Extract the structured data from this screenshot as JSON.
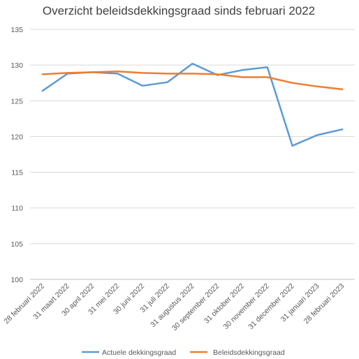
{
  "chart_data": {
    "type": "line",
    "title": "Overzicht beleidsdekkingsgraad sinds februari 2022",
    "xlabel": "",
    "ylabel": "",
    "categories": [
      "28 februari 2022",
      "31 maart 2022",
      "30 april 2022",
      "31 mei 2022",
      "30 juni 2022",
      "31 juli 2022",
      "31 augustus 2022",
      "30 september 2022",
      "31 oktober 2022",
      "30 november 2022",
      "31 december 2022",
      "31 januari 2023",
      "28 februari 2023"
    ],
    "ylim": [
      100,
      135
    ],
    "yticks": [
      "100",
      "105",
      "110",
      "115",
      "120",
      "125",
      "130",
      "135"
    ],
    "grid": true,
    "legend_position": "bottom",
    "series": [
      {
        "name": "Actuele dekkingsgraad",
        "color": "#5b9bd5",
        "values": [
          126.4,
          128.8,
          129.0,
          128.8,
          127.1,
          127.6,
          130.2,
          128.6,
          129.3,
          129.7,
          118.7,
          120.2,
          121.0
        ]
      },
      {
        "name": "Beleidsdekkingsgraad",
        "color": "#ed7d31",
        "values": [
          128.7,
          128.9,
          129.0,
          129.1,
          128.9,
          128.8,
          128.8,
          128.7,
          128.3,
          128.3,
          127.5,
          127.0,
          126.6
        ]
      }
    ]
  }
}
